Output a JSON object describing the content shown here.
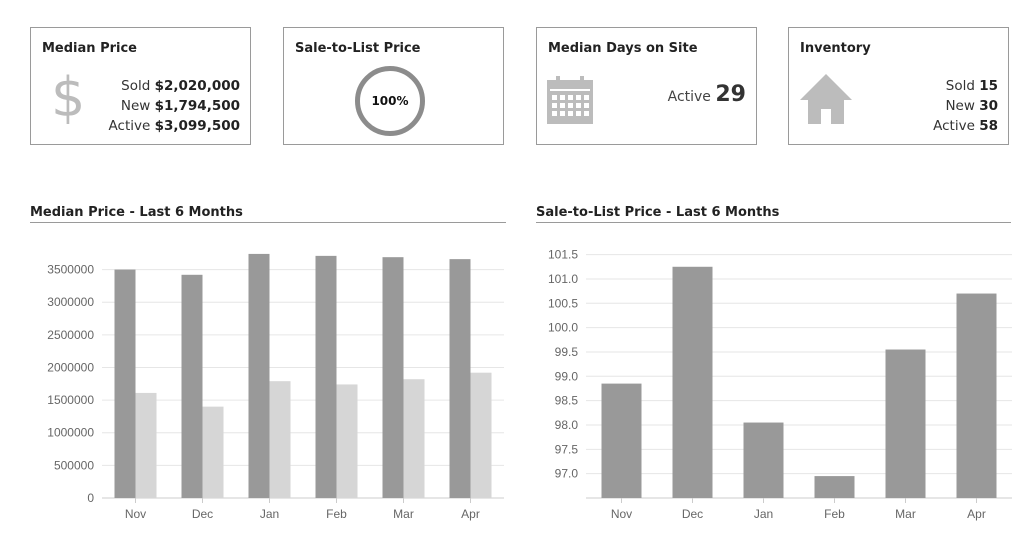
{
  "cards": {
    "median_price": {
      "title": "Median Price",
      "icon": "dollar-icon",
      "sold_label": "Sold",
      "sold_value": "$2,020,000",
      "new_label": "New",
      "new_value": "$1,794,500",
      "active_label": "Active",
      "active_value": "$3,099,500"
    },
    "sale_to_list": {
      "title": "Sale-to-List Price",
      "value": "100%"
    },
    "days_on_site": {
      "title": "Median Days on Site",
      "icon": "calendar-icon",
      "active_label": "Active",
      "active_value": "29"
    },
    "inventory": {
      "title": "Inventory",
      "icon": "house-icon",
      "sold_label": "Sold",
      "sold_value": "15",
      "new_label": "New",
      "new_value": "30",
      "active_label": "Active",
      "active_value": "58"
    }
  },
  "colors": {
    "bar_dark": "#999999",
    "bar_light": "#d6d6d6",
    "border": "#9a9a9a",
    "icon": "#bcbcbc"
  },
  "chart_data": [
    {
      "type": "bar",
      "title": "Median Price - Last 6 Months",
      "categories": [
        "Nov",
        "Dec",
        "Jan",
        "Feb",
        "Mar",
        "Apr"
      ],
      "series": [
        {
          "values": [
            3500000,
            3420000,
            3740000,
            3710000,
            3690000,
            3660000
          ]
        },
        {
          "values": [
            1610000,
            1400000,
            1790000,
            1740000,
            1820000,
            1920000
          ]
        }
      ],
      "ylim": [
        0,
        3800000
      ],
      "yticks": [
        "0",
        "500000",
        "1000000",
        "1500000",
        "2000000",
        "2500000",
        "3000000",
        "3500000"
      ],
      "grid": true
    },
    {
      "type": "bar",
      "title": "Sale-to-List Price - Last 6 Months",
      "categories": [
        "Nov",
        "Dec",
        "Jan",
        "Feb",
        "Mar",
        "Apr"
      ],
      "series": [
        {
          "values": [
            98.85,
            101.25,
            98.05,
            96.95,
            99.55,
            100.7
          ]
        }
      ],
      "ylim": [
        96.5,
        101.8
      ],
      "yticks": [
        "97.0",
        "97.5",
        "98.0",
        "98.5",
        "99.0",
        "99.5",
        "100.0",
        "100.5",
        "101.0",
        "101.5"
      ],
      "grid": true
    }
  ]
}
